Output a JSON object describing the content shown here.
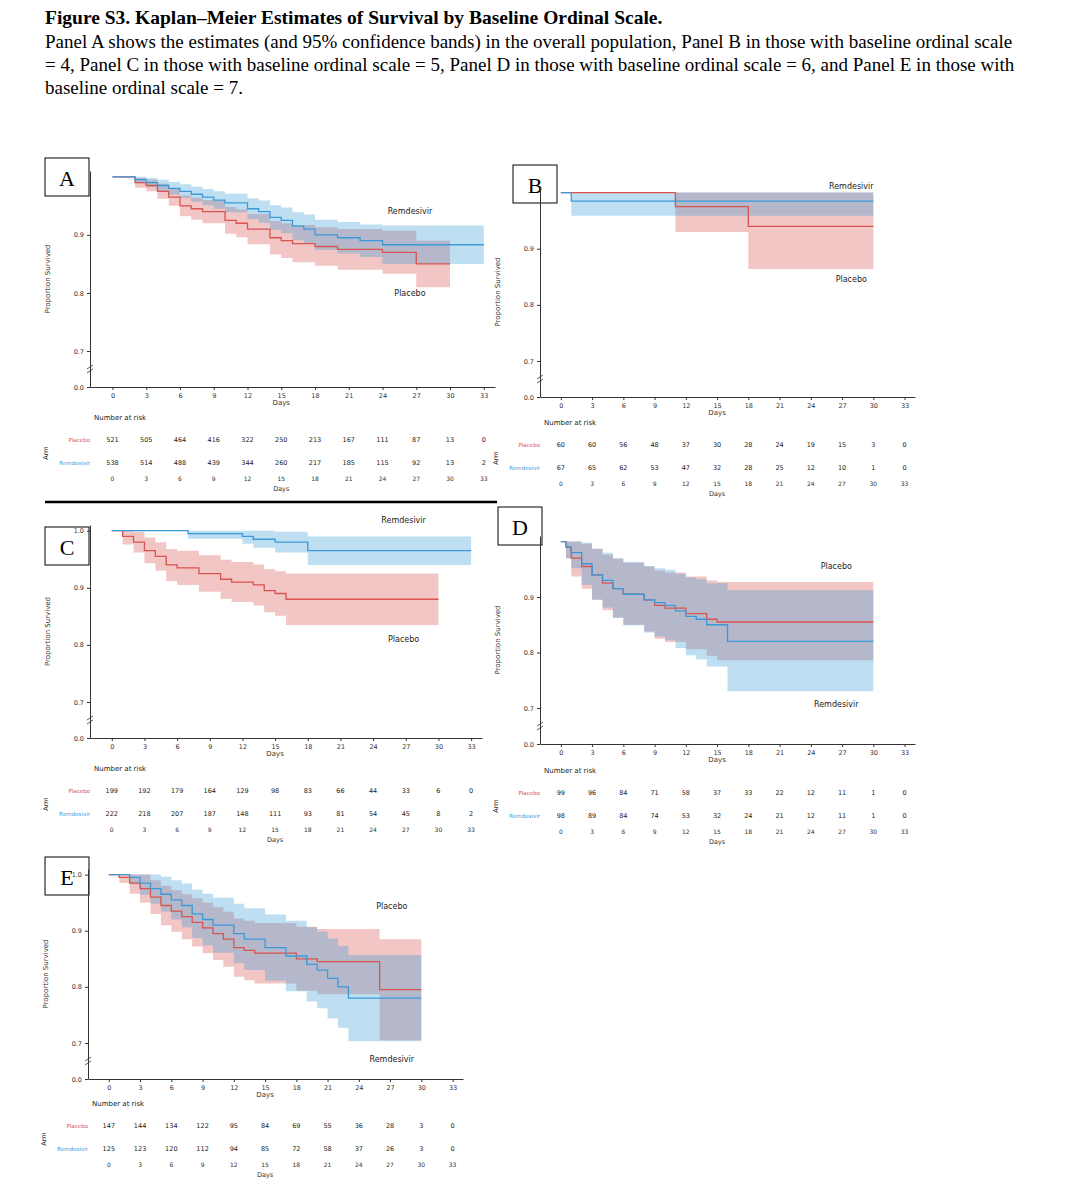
{
  "figure": {
    "title": "Figure S3. Kaplan–Meier Estimates of Survival by Baseline Ordinal Scale.",
    "caption": "Panel A shows the estimates (and 95% confidence bands) in the overall population, Panel B in those with baseline ordinal scale = 4, Panel C in those with baseline ordinal scale = 5, Panel D in those with baseline ordinal scale = 6, and Panel E in those with baseline ordinal scale = 7."
  },
  "chart_data": [
    {
      "panel": "A",
      "type": "step",
      "xlabel": "Days",
      "ylabel": "Proportion Survived",
      "risk_title": "Number at risk",
      "risk_label": "Arm",
      "xlim": [
        -2,
        34
      ],
      "xticks": [
        0,
        3,
        6,
        9,
        12,
        15,
        18,
        21,
        24,
        27,
        30,
        33
      ],
      "ylim": [
        0,
        1.01
      ],
      "yticks": [
        {
          "value": 0,
          "label": "0.0"
        },
        0.7,
        0.8,
        0.9
      ],
      "series": [
        {
          "name": "Placebo",
          "color": "#d9534f",
          "x": [
            0,
            2,
            3,
            4,
            5,
            6,
            7,
            8,
            10,
            11,
            12,
            14,
            15,
            16,
            18,
            20,
            24,
            27,
            30
          ],
          "values": [
            1,
            0.99,
            0.985,
            0.975,
            0.965,
            0.95,
            0.945,
            0.94,
            0.925,
            0.92,
            0.91,
            0.895,
            0.89,
            0.885,
            0.88,
            0.875,
            0.87,
            0.85,
            0.85
          ],
          "lower": [
            1,
            0.981,
            0.975,
            0.962,
            0.95,
            0.932,
            0.926,
            0.92,
            0.902,
            0.896,
            0.884,
            0.866,
            0.86,
            0.853,
            0.847,
            0.84,
            0.833,
            0.81,
            0.81
          ],
          "upper": [
            1,
            0.998,
            0.995,
            0.988,
            0.98,
            0.968,
            0.964,
            0.96,
            0.948,
            0.944,
            0.936,
            0.924,
            0.92,
            0.917,
            0.913,
            0.91,
            0.907,
            0.89,
            0.89
          ],
          "at_risk": [
            521,
            505,
            464,
            416,
            322,
            250,
            213,
            167,
            111,
            87,
            13,
            0
          ]
        },
        {
          "name": "Remdesivir",
          "color": "#3a9ad9",
          "x": [
            0,
            2,
            3,
            4,
            5,
            6,
            7,
            8,
            9,
            10,
            12,
            13,
            14,
            15,
            16,
            17,
            18,
            20,
            22,
            24,
            33
          ],
          "values": [
            1,
            0.995,
            0.99,
            0.985,
            0.98,
            0.975,
            0.97,
            0.965,
            0.96,
            0.955,
            0.945,
            0.94,
            0.93,
            0.925,
            0.915,
            0.91,
            0.9,
            0.895,
            0.89,
            0.883,
            0.883
          ],
          "lower": [
            1,
            0.989,
            0.982,
            0.975,
            0.969,
            0.963,
            0.957,
            0.951,
            0.945,
            0.939,
            0.927,
            0.921,
            0.909,
            0.903,
            0.891,
            0.885,
            0.874,
            0.868,
            0.862,
            0.85,
            0.85
          ],
          "upper": [
            1,
            1,
            0.998,
            0.995,
            0.991,
            0.987,
            0.983,
            0.979,
            0.975,
            0.971,
            0.963,
            0.959,
            0.951,
            0.947,
            0.939,
            0.935,
            0.926,
            0.922,
            0.918,
            0.916,
            0.916
          ],
          "at_risk": [
            538,
            514,
            488,
            439,
            344,
            260,
            217,
            185,
            115,
            92,
            13,
            2
          ]
        }
      ]
    },
    {
      "panel": "B",
      "type": "step",
      "xlabel": "Days",
      "ylabel": "Proportion Survived",
      "risk_title": "Number at risk",
      "risk_label": "Arm",
      "xlim": [
        -2,
        34
      ],
      "xticks": [
        0,
        3,
        6,
        9,
        12,
        15,
        18,
        21,
        24,
        27,
        30,
        33
      ],
      "ylim": [
        0,
        1.01
      ],
      "yticks": [
        {
          "value": 0,
          "label": "0.0"
        },
        0.7,
        0.8,
        0.9
      ],
      "series": [
        {
          "name": "Placebo",
          "color": "#d9534f",
          "x": [
            0,
            11,
            18,
            30
          ],
          "values": [
            1,
            0.975,
            0.94,
            0.94
          ],
          "lower": [
            1,
            0.93,
            0.864,
            0.864
          ],
          "upper": [
            1,
            1,
            1,
            1
          ],
          "at_risk": [
            60,
            60,
            56,
            48,
            37,
            30,
            28,
            24,
            19,
            15,
            3,
            0
          ]
        },
        {
          "name": "Remdesivir",
          "color": "#3a9ad9",
          "x": [
            0,
            1,
            30
          ],
          "values": [
            1,
            0.985,
            0.985
          ],
          "lower": [
            1,
            0.959,
            0.959
          ],
          "upper": [
            1,
            1,
            1
          ],
          "at_risk": [
            67,
            65,
            62,
            53,
            47,
            32,
            28,
            25,
            12,
            10,
            1,
            0
          ]
        }
      ]
    },
    {
      "panel": "C",
      "type": "step",
      "xlabel": "Days",
      "ylabel": "Proportion Survived",
      "risk_title": "Number at risk",
      "risk_label": "Arm",
      "xlim": [
        -2,
        34
      ],
      "xticks": [
        0,
        3,
        6,
        9,
        12,
        15,
        18,
        21,
        24,
        27,
        30,
        33
      ],
      "ylim": [
        0,
        1.01
      ],
      "yticks": [
        {
          "value": 0,
          "label": "0.0"
        },
        0.7,
        0.8,
        0.9,
        {
          "value": 1,
          "label": "1.0"
        }
      ],
      "series": [
        {
          "name": "Placebo",
          "color": "#d9534f",
          "x": [
            0,
            1,
            2,
            3,
            4,
            5,
            6,
            8,
            10,
            11,
            13,
            14,
            15,
            16,
            30
          ],
          "values": [
            1,
            0.99,
            0.98,
            0.965,
            0.955,
            0.94,
            0.935,
            0.925,
            0.915,
            0.91,
            0.905,
            0.895,
            0.89,
            0.88,
            0.88
          ],
          "lower": [
            1,
            0.976,
            0.962,
            0.943,
            0.93,
            0.912,
            0.905,
            0.893,
            0.881,
            0.875,
            0.869,
            0.857,
            0.851,
            0.835,
            0.835
          ],
          "upper": [
            1,
            1,
            0.998,
            0.988,
            0.98,
            0.968,
            0.965,
            0.957,
            0.949,
            0.945,
            0.941,
            0.933,
            0.929,
            0.925,
            0.925
          ],
          "at_risk": [
            199,
            192,
            179,
            164,
            129,
            98,
            83,
            66,
            44,
            33,
            6,
            0
          ]
        },
        {
          "name": "Remdesivir",
          "color": "#3a9ad9",
          "x": [
            0,
            7,
            12,
            13,
            15,
            18,
            33
          ],
          "values": [
            1,
            0.995,
            0.99,
            0.985,
            0.98,
            0.965,
            0.965
          ],
          "lower": [
            1,
            0.986,
            0.977,
            0.97,
            0.962,
            0.94,
            0.94
          ],
          "upper": [
            1,
            1,
            1,
            1,
            0.998,
            0.99,
            0.99
          ],
          "at_risk": [
            222,
            218,
            207,
            187,
            148,
            111,
            93,
            81,
            54,
            45,
            8,
            2
          ]
        }
      ]
    },
    {
      "panel": "D",
      "type": "step",
      "xlabel": "Days",
      "ylabel": "Proportion Survived",
      "risk_title": "Number at risk",
      "risk_label": "Arm",
      "xlim": [
        -2,
        34
      ],
      "xticks": [
        0,
        3,
        6,
        9,
        12,
        15,
        18,
        21,
        24,
        27,
        30,
        33
      ],
      "ylim": [
        0,
        1.01
      ],
      "yticks": [
        {
          "value": 0,
          "label": "0.0"
        },
        0.7,
        0.8,
        0.9
      ],
      "series": [
        {
          "name": "Placebo",
          "color": "#d9534f",
          "x": [
            0,
            0.5,
            1,
            2,
            3,
            4,
            5,
            6,
            8,
            9,
            10,
            12,
            14,
            15,
            30
          ],
          "values": [
            1,
            0.99,
            0.97,
            0.955,
            0.94,
            0.925,
            0.915,
            0.905,
            0.895,
            0.885,
            0.88,
            0.87,
            0.86,
            0.855,
            0.855
          ],
          "lower": [
            1,
            0.97,
            0.937,
            0.915,
            0.895,
            0.876,
            0.863,
            0.85,
            0.838,
            0.825,
            0.819,
            0.806,
            0.794,
            0.786,
            0.786
          ],
          "upper": [
            1,
            1,
            1,
            0.996,
            0.987,
            0.976,
            0.969,
            0.962,
            0.955,
            0.948,
            0.944,
            0.937,
            0.93,
            0.927,
            0.927
          ],
          "at_risk": [
            99,
            96,
            84,
            71,
            58,
            37,
            33,
            22,
            12,
            11,
            1,
            0
          ]
        },
        {
          "name": "Remdesivir",
          "color": "#3a9ad9",
          "x": [
            0,
            0.5,
            1,
            2,
            3,
            4,
            5,
            6,
            8,
            9,
            10,
            11,
            12,
            13,
            14,
            16,
            30
          ],
          "values": [
            1,
            0.99,
            0.98,
            0.96,
            0.94,
            0.93,
            0.915,
            0.905,
            0.895,
            0.89,
            0.885,
            0.875,
            0.865,
            0.86,
            0.85,
            0.82,
            0.82
          ],
          "lower": [
            1,
            0.97,
            0.952,
            0.922,
            0.895,
            0.881,
            0.862,
            0.849,
            0.836,
            0.829,
            0.822,
            0.808,
            0.795,
            0.788,
            0.775,
            0.73,
            0.73
          ],
          "upper": [
            1,
            1,
            1,
            0.998,
            0.987,
            0.98,
            0.97,
            0.963,
            0.956,
            0.952,
            0.949,
            0.942,
            0.935,
            0.932,
            0.925,
            0.912,
            0.912
          ],
          "at_risk": [
            98,
            89,
            84,
            74,
            53,
            32,
            24,
            21,
            12,
            11,
            1,
            0
          ]
        }
      ]
    },
    {
      "panel": "E",
      "type": "step",
      "xlabel": "Days",
      "ylabel": "Proportion Survived",
      "risk_title": "Number at risk",
      "risk_label": "Arm",
      "xlim": [
        -2,
        34
      ],
      "xticks": [
        0,
        3,
        6,
        9,
        12,
        15,
        18,
        21,
        24,
        27,
        30,
        33
      ],
      "ylim": [
        0,
        1.01
      ],
      "yticks": [
        {
          "value": 0,
          "label": "0.0"
        },
        0.7,
        0.8,
        0.9,
        {
          "value": 1,
          "label": "1.0"
        }
      ],
      "series": [
        {
          "name": "Placebo",
          "color": "#d9534f",
          "x": [
            0,
            1,
            2,
            3,
            4,
            5,
            6,
            7,
            8,
            9,
            10,
            11,
            12,
            13,
            14,
            18,
            20,
            26,
            30
          ],
          "values": [
            1,
            0.995,
            0.985,
            0.975,
            0.96,
            0.945,
            0.935,
            0.925,
            0.915,
            0.905,
            0.895,
            0.885,
            0.87,
            0.865,
            0.86,
            0.85,
            0.845,
            0.795,
            0.795
          ],
          "lower": [
            1,
            0.985,
            0.966,
            0.95,
            0.93,
            0.91,
            0.898,
            0.885,
            0.872,
            0.86,
            0.848,
            0.836,
            0.818,
            0.812,
            0.806,
            0.793,
            0.787,
            0.705,
            0.705
          ],
          "upper": [
            1,
            1,
            1,
            1,
            0.99,
            0.98,
            0.972,
            0.965,
            0.958,
            0.95,
            0.942,
            0.934,
            0.922,
            0.918,
            0.914,
            0.907,
            0.903,
            0.885,
            0.885
          ],
          "at_risk": [
            147,
            144,
            134,
            122,
            95,
            84,
            69,
            55,
            36,
            28,
            3,
            0
          ]
        },
        {
          "name": "Remdesivir",
          "color": "#3a9ad9",
          "x": [
            0,
            2,
            3,
            4,
            5,
            6,
            7,
            8,
            9,
            10,
            12,
            13,
            15,
            17,
            19,
            20,
            21,
            22,
            23,
            30
          ],
          "values": [
            1,
            0.995,
            0.985,
            0.975,
            0.965,
            0.955,
            0.945,
            0.93,
            0.92,
            0.91,
            0.895,
            0.885,
            0.87,
            0.855,
            0.84,
            0.83,
            0.815,
            0.8,
            0.78,
            0.78
          ],
          "lower": [
            1,
            0.983,
            0.964,
            0.948,
            0.934,
            0.92,
            0.906,
            0.887,
            0.874,
            0.861,
            0.842,
            0.83,
            0.811,
            0.792,
            0.774,
            0.762,
            0.744,
            0.727,
            0.703,
            0.703
          ],
          "upper": [
            1,
            1,
            1,
            1,
            0.996,
            0.99,
            0.984,
            0.973,
            0.966,
            0.959,
            0.948,
            0.94,
            0.929,
            0.918,
            0.906,
            0.898,
            0.886,
            0.873,
            0.857,
            0.857
          ],
          "at_risk": [
            125,
            123,
            120,
            112,
            94,
            85,
            72,
            58,
            37,
            26,
            3,
            0
          ]
        }
      ]
    }
  ]
}
